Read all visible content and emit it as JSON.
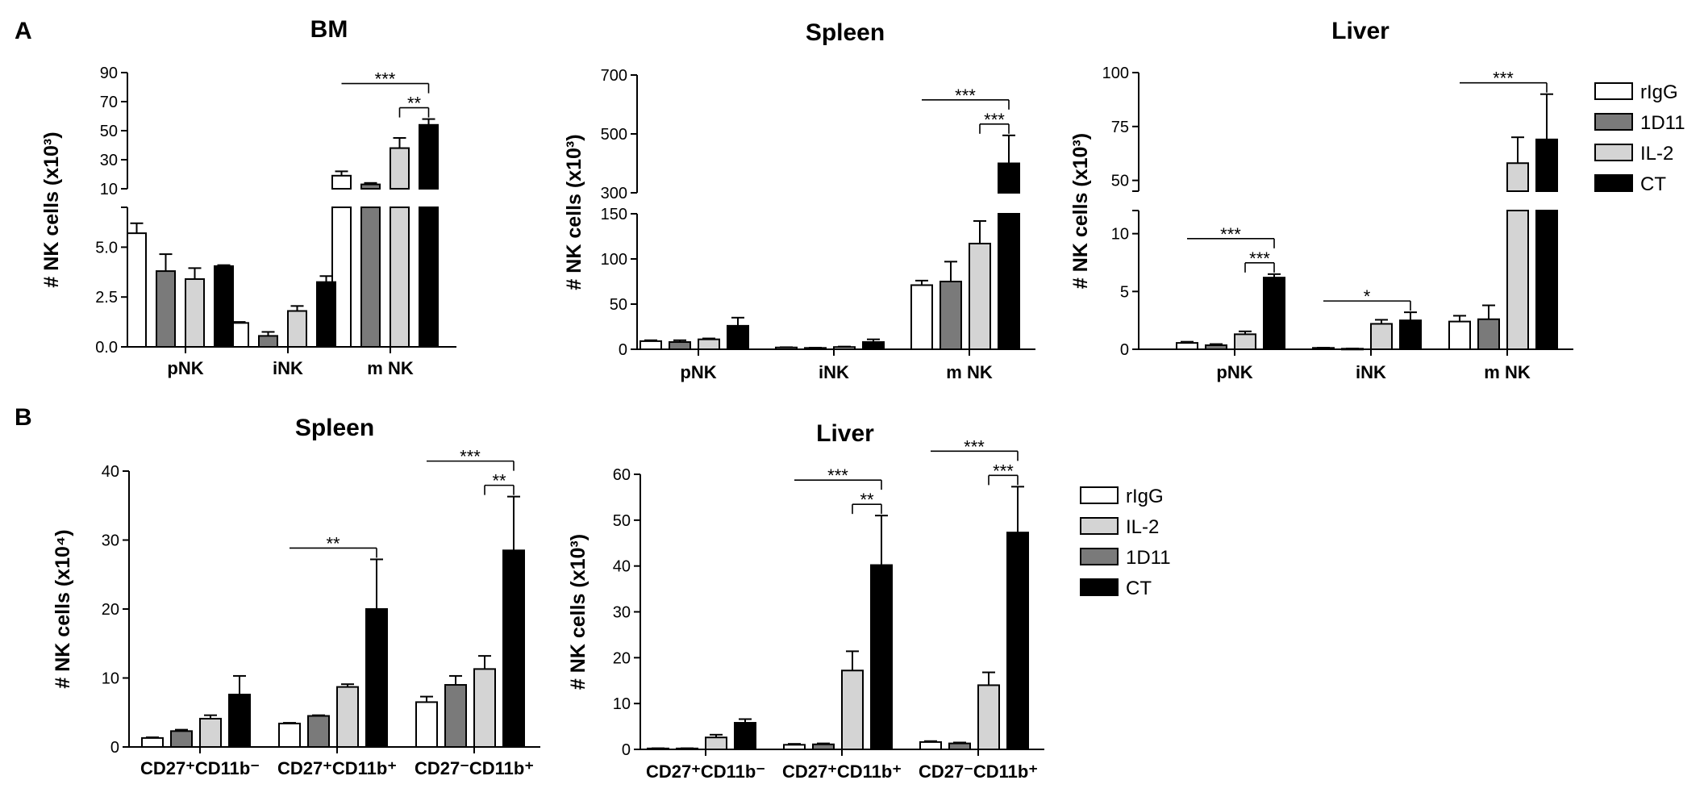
{
  "panel_letters": [
    "A",
    "B"
  ],
  "colors": {
    "rIgG": "#ffffff",
    "1D11": "#7a7a7a",
    "IL-2": "#d4d4d4",
    "CT": "#000000"
  },
  "legends": [
    {
      "items": [
        "rIgG",
        "1D11",
        "IL-2",
        "CT"
      ]
    },
    {
      "items": [
        "rIgG",
        "IL-2",
        "1D11",
        "CT"
      ]
    }
  ],
  "chart_data": [
    {
      "type": "bar",
      "title": "BM",
      "ylabel": "# NK cells (x10³)",
      "categories": [
        "pNK",
        "iNK",
        "m NK"
      ],
      "broken_axis": true,
      "lower_ylim": [
        0,
        7
      ],
      "lower_ticks": [
        "0.0",
        "2.5",
        "5.0"
      ],
      "upper_ylim": [
        10,
        90
      ],
      "upper_ticks": [
        "10",
        "30",
        "50",
        "70",
        "90"
      ],
      "series": [
        {
          "name": "rIgG",
          "values": [
            5.7,
            1.2,
            19
          ],
          "errors": [
            0.5,
            0.05,
            3
          ]
        },
        {
          "name": "1D11",
          "values": [
            3.8,
            0.55,
            13
          ],
          "errors": [
            0.85,
            0.2,
            1
          ]
        },
        {
          "name": "IL-2",
          "values": [
            3.4,
            1.8,
            38
          ],
          "errors": [
            0.55,
            0.25,
            7
          ]
        },
        {
          "name": "CT",
          "values": [
            4.05,
            3.25,
            54
          ],
          "errors": [
            0.05,
            0.3,
            4
          ]
        }
      ],
      "significance": [
        {
          "cat": 2,
          "from": 0,
          "to": 3,
          "label": "***",
          "level": 1
        },
        {
          "cat": 2,
          "from": 2,
          "to": 3,
          "label": "**",
          "level": 0
        }
      ]
    },
    {
      "type": "bar",
      "title": "Spleen",
      "ylabel": "# NK cells (x10³)",
      "categories": [
        "pNK",
        "iNK",
        "m NK"
      ],
      "broken_axis": true,
      "lower_ylim": [
        0,
        150
      ],
      "lower_ticks": [
        "0",
        "50",
        "100",
        "150"
      ],
      "upper_ylim": [
        300,
        700
      ],
      "upper_ticks": [
        "300",
        "500",
        "700"
      ],
      "series": [
        {
          "name": "rIgG",
          "values": [
            9,
            2,
            71
          ],
          "errors": [
            1,
            0.3,
            5
          ]
        },
        {
          "name": "1D11",
          "values": [
            8,
            1.5,
            75
          ],
          "errors": [
            2,
            0.3,
            22
          ]
        },
        {
          "name": "IL-2",
          "values": [
            11,
            2.5,
            117
          ],
          "errors": [
            1,
            0.5,
            25
          ]
        },
        {
          "name": "CT",
          "values": [
            26,
            8,
            400
          ],
          "errors": [
            9,
            3,
            95
          ]
        }
      ],
      "significance": [
        {
          "cat": 2,
          "from": 0,
          "to": 3,
          "label": "***",
          "level": 1
        },
        {
          "cat": 2,
          "from": 2,
          "to": 3,
          "label": "***",
          "level": 0
        }
      ]
    },
    {
      "type": "bar",
      "title": "Liver",
      "ylabel": "# NK cells (x10³)",
      "categories": [
        "pNK",
        "iNK",
        "m NK"
      ],
      "broken_axis": true,
      "lower_ylim": [
        0,
        12
      ],
      "lower_ticks": [
        "0",
        "5",
        "10"
      ],
      "upper_ylim": [
        45,
        100
      ],
      "upper_ticks": [
        "50",
        "75",
        "100"
      ],
      "series": [
        {
          "name": "rIgG",
          "values": [
            0.55,
            0.12,
            2.4
          ],
          "errors": [
            0.1,
            0.02,
            0.5
          ]
        },
        {
          "name": "1D11",
          "values": [
            0.35,
            0.05,
            2.6
          ],
          "errors": [
            0.1,
            0.02,
            1.2
          ]
        },
        {
          "name": "IL-2",
          "values": [
            1.3,
            2.2,
            58
          ],
          "errors": [
            0.25,
            0.35,
            12
          ]
        },
        {
          "name": "CT",
          "values": [
            6.2,
            2.5,
            69
          ],
          "errors": [
            0.3,
            0.7,
            21
          ]
        }
      ],
      "significance": [
        {
          "cat": 0,
          "from": 0,
          "to": 3,
          "label": "***",
          "level": 1
        },
        {
          "cat": 0,
          "from": 2,
          "to": 3,
          "label": "***",
          "level": 0
        },
        {
          "cat": 1,
          "from": 0,
          "to": 3,
          "label": "*",
          "level": 0
        },
        {
          "cat": 2,
          "from": 0,
          "to": 3,
          "label": "***",
          "level": 0
        }
      ]
    },
    {
      "type": "bar",
      "title": "Spleen",
      "ylabel": "# NK cells (x10⁴)",
      "categories": [
        "CD27⁺CD11b⁻",
        "CD27⁺CD11b⁺",
        "CD27⁻CD11b⁺"
      ],
      "ylim": [
        0,
        40
      ],
      "yticks": [
        "0",
        "10",
        "20",
        "30",
        "40"
      ],
      "series": [
        {
          "name": "rIgG",
          "values": [
            1.3,
            3.4,
            6.5
          ],
          "errors": [
            0.1,
            0.1,
            0.8
          ]
        },
        {
          "name": "1D11",
          "values": [
            2.3,
            4.5,
            9
          ],
          "errors": [
            0.2,
            0.1,
            1.3
          ]
        },
        {
          "name": "IL-2",
          "values": [
            4.1,
            8.7,
            11.3
          ],
          "errors": [
            0.5,
            0.4,
            1.9
          ]
        },
        {
          "name": "CT",
          "values": [
            7.6,
            20,
            28.5
          ],
          "errors": [
            2.7,
            7.2,
            7.8
          ]
        }
      ],
      "significance": [
        {
          "cat": 1,
          "from": 0,
          "to": 3,
          "label": "**",
          "level": 0
        },
        {
          "cat": 2,
          "from": 0,
          "to": 3,
          "label": "***",
          "level": 1
        },
        {
          "cat": 2,
          "from": 2,
          "to": 3,
          "label": "**",
          "level": 0
        }
      ]
    },
    {
      "type": "bar",
      "title": "Liver",
      "ylabel": "# NK cells (x10³)",
      "categories": [
        "CD27⁺CD11b⁻",
        "CD27⁺CD11b⁺",
        "CD27⁻CD11b⁺"
      ],
      "ylim": [
        0,
        60
      ],
      "yticks": [
        "0",
        "10",
        "20",
        "30",
        "40",
        "50",
        "60"
      ],
      "series": [
        {
          "name": "rIgG",
          "values": [
            0.2,
            1,
            1.6
          ],
          "errors": [
            0.05,
            0.2,
            0.2
          ]
        },
        {
          "name": "1D11",
          "values": [
            0.2,
            1.1,
            1.3
          ],
          "errors": [
            0.05,
            0.2,
            0.2
          ]
        },
        {
          "name": "IL-2",
          "values": [
            2.6,
            17.2,
            14
          ],
          "errors": [
            0.6,
            4.2,
            2.8
          ]
        },
        {
          "name": "CT",
          "values": [
            5.8,
            40.2,
            47.3
          ],
          "errors": [
            0.8,
            10.8,
            10
          ]
        }
      ],
      "significance": [
        {
          "cat": 1,
          "from": 0,
          "to": 3,
          "label": "***",
          "level": 1
        },
        {
          "cat": 1,
          "from": 2,
          "to": 3,
          "label": "**",
          "level": 0
        },
        {
          "cat": 2,
          "from": 0,
          "to": 3,
          "label": "***",
          "level": 1
        },
        {
          "cat": 2,
          "from": 2,
          "to": 3,
          "label": "***",
          "level": 0
        }
      ]
    }
  ]
}
